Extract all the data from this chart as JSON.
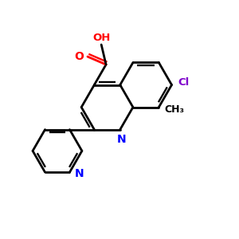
{
  "bg_color": "#ffffff",
  "bond_color": "#000000",
  "N_color": "#0000ff",
  "O_color": "#ff0000",
  "Cl_color": "#7f00cc",
  "line_width": 2.0,
  "figsize": [
    3.0,
    3.0
  ],
  "dpi": 100,
  "xlim": [
    0,
    10
  ],
  "ylim": [
    0,
    10
  ]
}
